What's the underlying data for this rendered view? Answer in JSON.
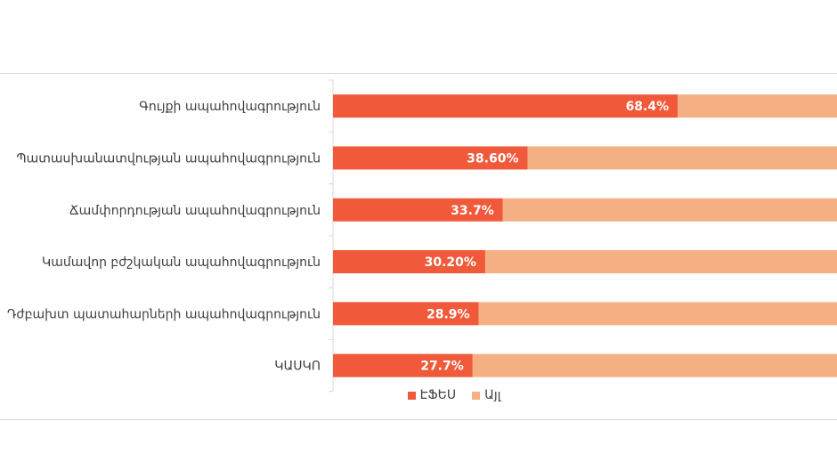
{
  "chart_data": {
    "type": "bar",
    "orientation": "horizontal",
    "stacked": true,
    "categories": [
      "Գույքի ապահովագրություն",
      "Պատասխանատվության ապահովագրություն",
      "Ճամփորդության ապահովագրություն",
      "Կամավոր բժշկական ապահովագրություն",
      "Դժբախտ պատահարների ապահովագրություն",
      "ԿԱՍԿՈ"
    ],
    "series": [
      {
        "name": "ԷՖԵՍ",
        "values": [
          68.4,
          38.6,
          33.7,
          30.2,
          28.9,
          27.7
        ],
        "labels": [
          "68.4%",
          "38.60%",
          "33.7%",
          "30.20%",
          "28.9%",
          "27.7%"
        ]
      },
      {
        "name": "Այլ",
        "values": [
          31.6,
          61.4,
          66.3,
          69.8,
          71.1,
          72.3
        ]
      }
    ],
    "xlim": [
      0,
      100
    ],
    "colors": {
      "efes": "#f05a3a",
      "other": "#f4b083"
    },
    "legend_position": "bottom"
  }
}
